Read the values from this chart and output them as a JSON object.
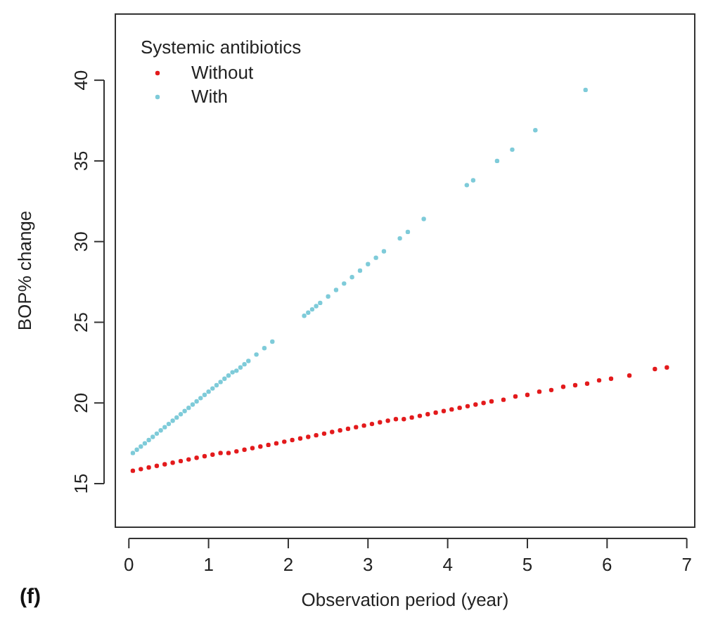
{
  "chart_data": {
    "type": "scatter",
    "xlabel": "Observation period (year)",
    "ylabel": "BOP% change",
    "legend_title": "Systemic antibiotics",
    "annotations": [
      "(f)"
    ],
    "xlim": [
      -0.17,
      7.1
    ],
    "xticks": [
      0,
      1,
      2,
      3,
      4,
      5,
      6,
      7
    ],
    "ylim": [
      12.3,
      44.1
    ],
    "yticks": [
      15,
      20,
      25,
      30,
      35,
      40
    ],
    "grid": false,
    "legend": "top left",
    "marker": "circle",
    "series": [
      {
        "name": "Without",
        "color": "#e31a1c",
        "x": [
          0.05,
          0.15,
          0.25,
          0.35,
          0.45,
          0.55,
          0.65,
          0.75,
          0.85,
          0.95,
          1.05,
          1.15,
          1.25,
          1.35,
          1.45,
          1.55,
          1.65,
          1.75,
          1.85,
          1.95,
          2.05,
          2.15,
          2.25,
          2.35,
          2.45,
          2.55,
          2.65,
          2.75,
          2.85,
          2.95,
          3.05,
          3.15,
          3.25,
          3.35,
          3.45,
          3.55,
          3.65,
          3.75,
          3.85,
          3.95,
          4.05,
          4.15,
          4.25,
          4.35,
          4.45,
          4.55,
          4.7,
          4.85,
          5.0,
          5.15,
          5.3,
          5.45,
          5.6,
          5.75,
          5.9,
          6.05,
          6.28,
          6.6,
          6.75
        ],
        "values": [
          15.8,
          15.9,
          16.0,
          16.1,
          16.2,
          16.3,
          16.4,
          16.5,
          16.6,
          16.7,
          16.8,
          16.9,
          16.9,
          17.0,
          17.1,
          17.2,
          17.3,
          17.4,
          17.5,
          17.6,
          17.7,
          17.8,
          17.9,
          18.0,
          18.1,
          18.2,
          18.3,
          18.4,
          18.5,
          18.6,
          18.7,
          18.8,
          18.9,
          19.0,
          19.0,
          19.1,
          19.2,
          19.3,
          19.4,
          19.5,
          19.6,
          19.7,
          19.8,
          19.9,
          20.0,
          20.1,
          20.2,
          20.4,
          20.5,
          20.7,
          20.8,
          21.0,
          21.1,
          21.2,
          21.4,
          21.5,
          21.7,
          22.1,
          22.2
        ]
      },
      {
        "name": "With",
        "color": "#7ecbd9",
        "x": [
          0.05,
          0.1,
          0.15,
          0.2,
          0.25,
          0.3,
          0.35,
          0.4,
          0.45,
          0.5,
          0.55,
          0.6,
          0.65,
          0.7,
          0.75,
          0.8,
          0.85,
          0.9,
          0.95,
          1.0,
          1.05,
          1.1,
          1.15,
          1.2,
          1.25,
          1.3,
          1.35,
          1.4,
          1.45,
          1.5,
          1.6,
          1.7,
          1.8,
          2.2,
          2.25,
          2.3,
          2.35,
          2.4,
          2.5,
          2.6,
          2.7,
          2.8,
          2.9,
          3.0,
          3.1,
          3.2,
          3.4,
          3.5,
          3.7,
          4.24,
          4.32,
          4.62,
          4.81,
          5.1,
          5.73
        ],
        "values": [
          16.9,
          17.1,
          17.3,
          17.5,
          17.7,
          17.9,
          18.1,
          18.3,
          18.5,
          18.7,
          18.9,
          19.1,
          19.3,
          19.5,
          19.7,
          19.9,
          20.1,
          20.3,
          20.5,
          20.7,
          20.9,
          21.1,
          21.3,
          21.5,
          21.7,
          21.9,
          22.0,
          22.2,
          22.4,
          22.6,
          23.0,
          23.4,
          23.8,
          25.4,
          25.6,
          25.8,
          26.0,
          26.2,
          26.6,
          27.0,
          27.4,
          27.8,
          28.2,
          28.6,
          29.0,
          29.4,
          30.2,
          30.6,
          31.4,
          33.5,
          33.8,
          35.0,
          35.7,
          36.9,
          39.4
        ]
      }
    ]
  }
}
